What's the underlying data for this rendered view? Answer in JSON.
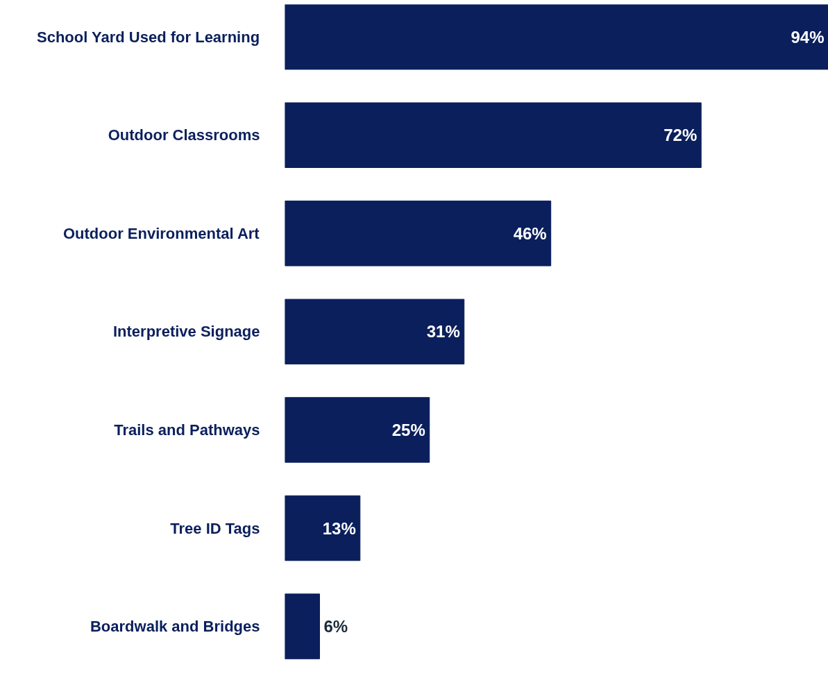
{
  "chart_data": {
    "type": "bar",
    "orientation": "horizontal",
    "categories": [
      "School Yard Used for Learning",
      "Outdoor Classrooms",
      "Outdoor Environmental Art",
      "Interpretive Signage",
      "Trails and Pathways",
      "Tree ID Tags",
      "Boardwalk and Bridges"
    ],
    "values": [
      94,
      72,
      46,
      31,
      25,
      13,
      6
    ],
    "value_labels": [
      "94%",
      "72%",
      "46%",
      "31%",
      "25%",
      "13%",
      "6%"
    ],
    "color": "#0a1f5c"
  }
}
